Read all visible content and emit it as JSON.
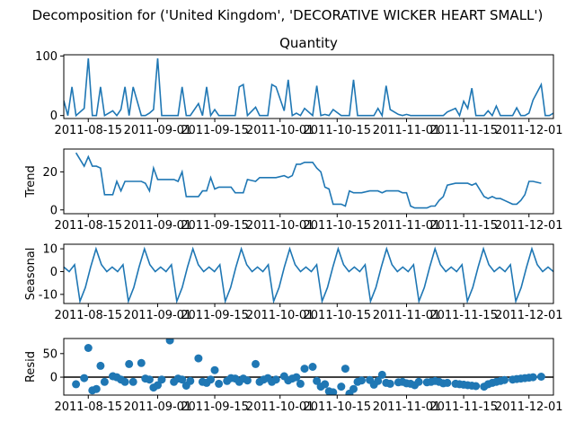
{
  "figure_title": "Decomposition for ('United Kingdom', 'DECORATIVE WICKER HEART SMALL')",
  "chart_data": [
    {
      "type": "line",
      "title": "Quantity",
      "ylabel": "",
      "ylim": [
        -5,
        102
      ],
      "yticks": [
        0,
        100
      ],
      "xlim": [
        "2011-08-09",
        "2011-12-07"
      ],
      "xticks": [
        "2011-08-15",
        "2011-09-01",
        "2011-09-15",
        "2011-10-01",
        "2011-10-15",
        "2011-11-01",
        "2011-11-15",
        "2011-12-01"
      ],
      "color": "#1f77b4",
      "x": [
        "2011-08-09",
        "2011-08-10",
        "2011-08-11",
        "2011-08-12",
        "2011-08-14",
        "2011-08-15",
        "2011-08-16",
        "2011-08-17",
        "2011-08-18",
        "2011-08-19",
        "2011-08-21",
        "2011-08-22",
        "2011-08-23",
        "2011-08-24",
        "2011-08-25",
        "2011-08-26",
        "2011-08-28",
        "2011-08-29",
        "2011-08-30",
        "2011-08-31",
        "2011-09-01",
        "2011-09-02",
        "2011-09-04",
        "2011-09-05",
        "2011-09-06",
        "2011-09-07",
        "2011-09-08",
        "2011-09-09",
        "2011-09-11",
        "2011-09-12",
        "2011-09-13",
        "2011-09-14",
        "2011-09-15",
        "2011-09-16",
        "2011-09-18",
        "2011-09-19",
        "2011-09-20",
        "2011-09-21",
        "2011-09-22",
        "2011-09-23",
        "2011-09-25",
        "2011-09-26",
        "2011-09-27",
        "2011-09-28",
        "2011-09-29",
        "2011-09-30",
        "2011-10-02",
        "2011-10-03",
        "2011-10-04",
        "2011-10-05",
        "2011-10-06",
        "2011-10-07",
        "2011-10-09",
        "2011-10-10",
        "2011-10-11",
        "2011-10-12",
        "2011-10-13",
        "2011-10-14",
        "2011-10-16",
        "2011-10-17",
        "2011-10-18",
        "2011-10-19",
        "2011-10-20",
        "2011-10-21",
        "2011-10-23",
        "2011-10-24",
        "2011-10-25",
        "2011-10-26",
        "2011-10-27",
        "2011-10-28",
        "2011-10-30",
        "2011-10-31",
        "2011-11-01",
        "2011-11-02",
        "2011-11-03",
        "2011-11-04",
        "2011-11-06",
        "2011-11-07",
        "2011-11-08",
        "2011-11-09",
        "2011-11-10",
        "2011-11-11",
        "2011-11-13",
        "2011-11-14",
        "2011-11-15",
        "2011-11-16",
        "2011-11-17",
        "2011-11-18",
        "2011-11-20",
        "2011-11-21",
        "2011-11-22",
        "2011-11-23",
        "2011-11-24",
        "2011-11-25",
        "2011-11-27",
        "2011-11-28",
        "2011-11-29",
        "2011-11-30",
        "2011-12-01",
        "2011-12-02",
        "2011-12-04",
        "2011-12-05",
        "2011-12-06",
        "2011-12-07"
      ],
      "values": [
        25,
        0,
        48,
        0,
        12,
        96,
        0,
        0,
        48,
        0,
        8,
        0,
        10,
        48,
        0,
        48,
        0,
        0,
        4,
        10,
        96,
        0,
        0,
        0,
        0,
        48,
        0,
        0,
        20,
        0,
        48,
        0,
        10,
        0,
        0,
        0,
        0,
        48,
        52,
        0,
        14,
        0,
        0,
        0,
        52,
        48,
        8,
        60,
        0,
        4,
        0,
        12,
        0,
        50,
        0,
        2,
        0,
        10,
        0,
        0,
        0,
        60,
        0,
        0,
        0,
        0,
        12,
        0,
        50,
        10,
        2,
        0,
        2,
        0,
        0,
        0,
        0,
        0,
        0,
        0,
        0,
        6,
        12,
        0,
        24,
        12,
        46,
        0,
        0,
        8,
        0,
        16,
        0,
        0,
        0,
        13,
        0,
        0,
        4,
        26,
        52,
        0,
        0,
        4
      ],
      "note_x_days": "offset"
    },
    {
      "type": "line",
      "title": "",
      "ylabel": "Trend",
      "ylim": [
        -2,
        32
      ],
      "yticks": [
        0,
        20
      ],
      "xlim": [
        "2011-08-09",
        "2011-12-07"
      ],
      "xticks": [
        "2011-08-15",
        "2011-09-01",
        "2011-09-15",
        "2011-10-01",
        "2011-10-15",
        "2011-11-01",
        "2011-11-15",
        "2011-12-01"
      ],
      "color": "#1f77b4",
      "x": [
        "2011-08-12",
        "2011-08-14",
        "2011-08-15",
        "2011-08-16",
        "2011-08-17",
        "2011-08-18",
        "2011-08-19",
        "2011-08-21",
        "2011-08-22",
        "2011-08-23",
        "2011-08-24",
        "2011-08-25",
        "2011-08-26",
        "2011-08-28",
        "2011-08-29",
        "2011-08-30",
        "2011-08-31",
        "2011-09-01",
        "2011-09-02",
        "2011-09-04",
        "2011-09-05",
        "2011-09-06",
        "2011-09-07",
        "2011-09-08",
        "2011-09-09",
        "2011-09-11",
        "2011-09-12",
        "2011-09-13",
        "2011-09-14",
        "2011-09-15",
        "2011-09-16",
        "2011-09-18",
        "2011-09-19",
        "2011-09-20",
        "2011-09-21",
        "2011-09-22",
        "2011-09-23",
        "2011-09-25",
        "2011-09-26",
        "2011-09-27",
        "2011-09-28",
        "2011-09-29",
        "2011-09-30",
        "2011-10-02",
        "2011-10-03",
        "2011-10-04",
        "2011-10-05",
        "2011-10-06",
        "2011-10-07",
        "2011-10-09",
        "2011-10-10",
        "2011-10-11",
        "2011-10-12",
        "2011-10-13",
        "2011-10-14",
        "2011-10-16",
        "2011-10-17",
        "2011-10-18",
        "2011-10-19",
        "2011-10-20",
        "2011-10-21",
        "2011-10-23",
        "2011-10-24",
        "2011-10-25",
        "2011-10-26",
        "2011-10-27",
        "2011-10-28",
        "2011-10-30",
        "2011-10-31",
        "2011-11-01",
        "2011-11-02",
        "2011-11-03",
        "2011-11-04",
        "2011-11-06",
        "2011-11-07",
        "2011-11-08",
        "2011-11-09",
        "2011-11-10",
        "2011-11-11",
        "2011-11-13",
        "2011-11-14",
        "2011-11-15",
        "2011-11-16",
        "2011-11-17",
        "2011-11-18",
        "2011-11-20",
        "2011-11-21",
        "2011-11-22",
        "2011-11-23",
        "2011-11-24",
        "2011-11-25",
        "2011-11-27",
        "2011-11-28",
        "2011-11-29",
        "2011-11-30",
        "2011-12-01",
        "2011-12-02",
        "2011-12-04"
      ],
      "values": [
        30,
        23,
        28,
        23,
        23,
        22,
        8,
        8,
        15,
        10,
        15,
        15,
        15,
        15,
        14,
        10,
        22,
        16,
        16,
        16,
        16,
        15,
        20,
        7,
        7,
        7,
        10,
        10,
        17,
        11,
        12,
        12,
        12,
        9,
        9,
        9,
        16,
        15,
        17,
        17,
        17,
        17,
        17,
        18,
        17,
        18,
        24,
        24,
        25,
        25,
        22,
        20,
        12,
        11,
        3,
        3,
        2,
        10,
        9,
        9,
        9,
        10,
        10,
        10,
        9,
        10,
        10,
        10,
        9,
        9,
        2,
        1,
        1,
        1,
        2,
        2,
        5,
        7,
        13,
        14,
        14,
        14,
        14,
        13,
        14,
        7,
        6,
        7,
        6,
        6,
        5,
        3,
        3,
        5,
        8,
        15,
        15,
        14
      ],
      "note_x_days": "offset"
    },
    {
      "type": "line",
      "title": "",
      "ylabel": "Seasonal",
      "ylim": [
        -14,
        12
      ],
      "yticks": [
        -10,
        0,
        10
      ],
      "xlim": [
        "2011-08-09",
        "2011-12-07"
      ],
      "xticks": [
        "2011-08-15",
        "2011-09-01",
        "2011-09-15",
        "2011-10-01",
        "2011-10-15",
        "2011-11-01",
        "2011-11-15",
        "2011-12-01"
      ],
      "color": "#1f77b4",
      "pattern": [
        2,
        0,
        3,
        -13,
        -7,
        2,
        10,
        3,
        0
      ],
      "period": 9
    },
    {
      "type": "scatter",
      "title": "",
      "ylabel": "Resid",
      "ylim": [
        -38,
        82
      ],
      "yticks": [
        0,
        50
      ],
      "xlim": [
        "2011-08-09",
        "2011-12-07"
      ],
      "xticks": [
        "2011-08-15",
        "2011-09-01",
        "2011-09-15",
        "2011-10-01",
        "2011-10-15",
        "2011-11-01",
        "2011-11-15",
        "2011-12-01"
      ],
      "color": "#1f77b4",
      "baseline": 0,
      "x": [
        "2011-08-12",
        "2011-08-14",
        "2011-08-15",
        "2011-08-16",
        "2011-08-17",
        "2011-08-18",
        "2011-08-19",
        "2011-08-21",
        "2011-08-22",
        "2011-08-23",
        "2011-08-24",
        "2011-08-25",
        "2011-08-26",
        "2011-08-28",
        "2011-08-29",
        "2011-08-30",
        "2011-08-31",
        "2011-09-01",
        "2011-09-02",
        "2011-09-04",
        "2011-09-05",
        "2011-09-06",
        "2011-09-07",
        "2011-09-08",
        "2011-09-09",
        "2011-09-11",
        "2011-09-12",
        "2011-09-13",
        "2011-09-14",
        "2011-09-15",
        "2011-09-16",
        "2011-09-18",
        "2011-09-19",
        "2011-09-20",
        "2011-09-21",
        "2011-09-22",
        "2011-09-23",
        "2011-09-25",
        "2011-09-26",
        "2011-09-27",
        "2011-09-28",
        "2011-09-29",
        "2011-09-30",
        "2011-10-02",
        "2011-10-03",
        "2011-10-04",
        "2011-10-05",
        "2011-10-06",
        "2011-10-07",
        "2011-10-09",
        "2011-10-10",
        "2011-10-11",
        "2011-10-12",
        "2011-10-13",
        "2011-10-14",
        "2011-10-16",
        "2011-10-17",
        "2011-10-18",
        "2011-10-19",
        "2011-10-20",
        "2011-10-21",
        "2011-10-23",
        "2011-10-24",
        "2011-10-25",
        "2011-10-26",
        "2011-10-27",
        "2011-10-28",
        "2011-10-30",
        "2011-10-31",
        "2011-11-01",
        "2011-11-02",
        "2011-11-03",
        "2011-11-04",
        "2011-11-06",
        "2011-11-07",
        "2011-11-08",
        "2011-11-09",
        "2011-11-10",
        "2011-11-11",
        "2011-11-13",
        "2011-11-14",
        "2011-11-15",
        "2011-11-16",
        "2011-11-17",
        "2011-11-18",
        "2011-11-20",
        "2011-11-21",
        "2011-11-22",
        "2011-11-23",
        "2011-11-24",
        "2011-11-25",
        "2011-11-27",
        "2011-11-28",
        "2011-11-29",
        "2011-11-30",
        "2011-12-01",
        "2011-12-02",
        "2011-12-04"
      ],
      "values": [
        -15,
        -2,
        62,
        -28,
        -25,
        24,
        -10,
        2,
        0,
        -5,
        -10,
        28,
        -10,
        30,
        -3,
        -5,
        -22,
        -17,
        -5,
        78,
        -10,
        -3,
        -5,
        -18,
        -8,
        40,
        -10,
        -12,
        -5,
        15,
        -14,
        -8,
        -2,
        -3,
        -10,
        -3,
        -7,
        28,
        -10,
        -5,
        -2,
        -10,
        -5,
        2,
        -7,
        -3,
        0,
        -14,
        18,
        22,
        -8,
        -20,
        -15,
        -30,
        -32,
        -20,
        18,
        -35,
        -25,
        -10,
        -7,
        -6,
        -16,
        -8,
        5,
        -12,
        -14,
        -11,
        -10,
        -13,
        -14,
        -17,
        -10,
        -11,
        -10,
        -8,
        -10,
        -13,
        -12,
        -14,
        -15,
        -16,
        -17,
        -18,
        -19,
        -20,
        -15,
        -12,
        -10,
        -8,
        -6,
        -5,
        -4,
        -3,
        -2,
        -1,
        0,
        1
      ],
      "note_x_days": "offset"
    }
  ]
}
